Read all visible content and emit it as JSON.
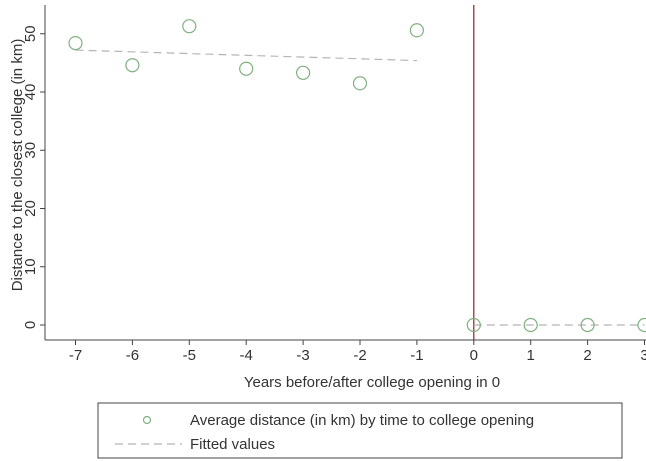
{
  "chart_data": {
    "type": "scatter",
    "xlabel": "Years before/after college opening in 0",
    "ylabel": "Distance to the closest college (in km)",
    "xlim": [
      -7,
      3
    ],
    "ylim": [
      0,
      53
    ],
    "x_ticks": [
      "-7",
      "-6",
      "-5",
      "-4",
      "-3",
      "-2",
      "-1",
      "0",
      "1",
      "2",
      "3"
    ],
    "y_ticks": [
      "0",
      "10",
      "20",
      "30",
      "40",
      "50"
    ],
    "grid": false,
    "vertical_line": {
      "x": 0,
      "color": "#9b1c1c"
    },
    "series": [
      {
        "name": "Average distance (in km) by time to college opening",
        "kind": "markers",
        "color": "#7fb07f",
        "points": [
          {
            "x": -7,
            "y": 48.4
          },
          {
            "x": -6,
            "y": 44.6
          },
          {
            "x": -5,
            "y": 51.3
          },
          {
            "x": -4,
            "y": 44.0
          },
          {
            "x": -3,
            "y": 43.3
          },
          {
            "x": -2,
            "y": 41.5
          },
          {
            "x": -1,
            "y": 50.6
          },
          {
            "x": 0,
            "y": 0
          },
          {
            "x": 1,
            "y": 0
          },
          {
            "x": 2,
            "y": 0
          },
          {
            "x": 3,
            "y": 0
          }
        ]
      },
      {
        "name": "Fitted values",
        "kind": "dashed-line",
        "color": "#b5b5b5",
        "segments": [
          [
            {
              "x": -7,
              "y": 47.2
            },
            {
              "x": -1,
              "y": 45.4
            }
          ],
          [
            {
              "x": 0,
              "y": 0
            },
            {
              "x": 3,
              "y": 0
            }
          ]
        ]
      }
    ],
    "legend": {
      "placement": "bottom",
      "entries": [
        "Average distance (in km) by time to college opening",
        "Fitted values"
      ]
    }
  }
}
